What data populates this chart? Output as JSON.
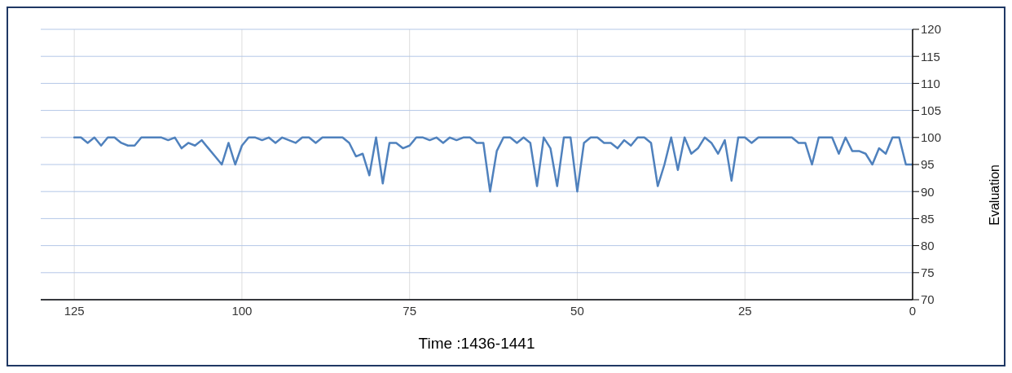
{
  "chart_data": {
    "type": "line",
    "xlabel": "Time :1436-1441",
    "ylabel": "Evaluation",
    "x": [
      125,
      124,
      123,
      122,
      121,
      120,
      119,
      118,
      117,
      116,
      115,
      114,
      113,
      112,
      111,
      110,
      109,
      108,
      107,
      106,
      105,
      104,
      103,
      102,
      101,
      100,
      99,
      98,
      97,
      96,
      95,
      94,
      93,
      92,
      91,
      90,
      89,
      88,
      87,
      86,
      85,
      84,
      83,
      82,
      81,
      80,
      79,
      78,
      77,
      76,
      75,
      74,
      73,
      72,
      71,
      70,
      69,
      68,
      67,
      66,
      65,
      64,
      63,
      62,
      61,
      60,
      59,
      58,
      57,
      56,
      55,
      54,
      53,
      52,
      51,
      50,
      49,
      48,
      47,
      46,
      45,
      44,
      43,
      42,
      41,
      40,
      39,
      38,
      37,
      36,
      35,
      34,
      33,
      32,
      31,
      30,
      29,
      28,
      27,
      26,
      25,
      24,
      23,
      22,
      21,
      20,
      19,
      18,
      17,
      16,
      15,
      14,
      13,
      12,
      11,
      10,
      9,
      8,
      7,
      6,
      5,
      4,
      3,
      2,
      1,
      0
    ],
    "series": [
      {
        "color": "#4f81bd",
        "values": [
          100,
          100,
          99,
          100,
          98.5,
          100,
          100,
          99,
          98.5,
          98.5,
          100,
          100,
          100,
          100,
          99.5,
          100,
          98,
          99,
          98.5,
          99.5,
          98,
          96.5,
          95,
          99,
          95,
          98.5,
          100,
          100,
          99.5,
          100,
          99,
          100,
          99.5,
          99,
          100,
          100,
          99,
          100,
          100,
          100,
          100,
          99,
          96.5,
          97,
          93,
          100,
          91.5,
          99,
          99,
          98,
          98.5,
          100,
          100,
          99.5,
          100,
          99,
          100,
          99.5,
          100,
          100,
          99,
          99,
          90,
          97.5,
          100,
          100,
          99,
          100,
          99,
          91,
          100,
          98,
          91,
          100,
          100,
          90,
          99,
          100,
          100,
          99,
          99,
          98,
          99.5,
          98.5,
          100,
          100,
          99,
          91,
          95,
          100,
          94,
          100,
          97,
          98,
          100,
          99,
          97,
          99.5,
          92,
          100,
          100,
          99,
          100,
          100,
          100,
          100,
          100,
          100,
          99,
          99,
          95,
          100,
          100,
          100,
          97,
          100,
          97.5,
          97.5,
          97,
          95,
          98,
          97,
          100,
          100,
          95,
          95
        ]
      }
    ],
    "xlim": [
      130,
      0
    ],
    "xticks": [
      125,
      100,
      75,
      50,
      25,
      0
    ],
    "ylim": [
      70,
      120
    ],
    "yticks": [
      70,
      75,
      80,
      85,
      90,
      95,
      100,
      105,
      110,
      115,
      120
    ],
    "grid": true,
    "legend": false,
    "marker": "none",
    "line_style": "solid"
  }
}
